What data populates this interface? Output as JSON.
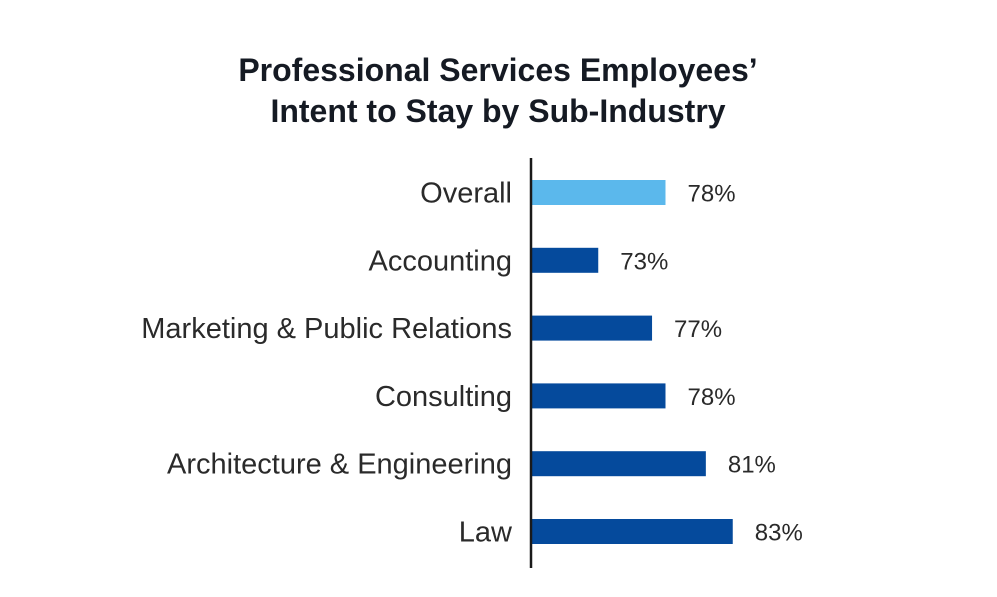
{
  "chart_data": {
    "type": "bar",
    "orientation": "horizontal",
    "title_lines": [
      "Professional Services Employees’",
      "Intent to Stay by Sub-Industry"
    ],
    "categories": [
      "Overall",
      "Accounting",
      "Marketing & Public Relations",
      "Consulting",
      "Architecture & Engineering",
      "Law"
    ],
    "values": [
      78,
      73,
      77,
      78,
      81,
      83
    ],
    "value_labels": [
      "78%",
      "73%",
      "77%",
      "78%",
      "81%",
      "83%"
    ],
    "highlight_index": 0,
    "colors": {
      "highlight": "#5bb8ec",
      "bar": "#054a9c",
      "axis": "#1a1a1a"
    },
    "value_axis_range": [
      68,
      88
    ],
    "grid": false,
    "legend": "none"
  }
}
